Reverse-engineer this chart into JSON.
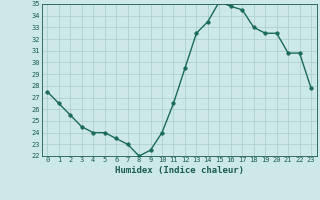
{
  "x": [
    0,
    1,
    2,
    3,
    4,
    5,
    6,
    7,
    8,
    9,
    10,
    11,
    12,
    13,
    14,
    15,
    16,
    17,
    18,
    19,
    20,
    21,
    22,
    23
  ],
  "y": [
    27.5,
    26.5,
    25.5,
    24.5,
    24.0,
    24.0,
    23.5,
    23.0,
    22.0,
    22.5,
    24.0,
    26.5,
    29.5,
    32.5,
    33.5,
    35.2,
    34.8,
    34.5,
    33.0,
    32.5,
    32.5,
    30.8,
    30.8,
    27.8
  ],
  "xlabel": "Humidex (Indice chaleur)",
  "ylim": [
    22,
    35
  ],
  "xlim": [
    -0.5,
    23.5
  ],
  "yticks": [
    22,
    23,
    24,
    25,
    26,
    27,
    28,
    29,
    30,
    31,
    32,
    33,
    34,
    35
  ],
  "xticks": [
    0,
    1,
    2,
    3,
    4,
    5,
    6,
    7,
    8,
    9,
    10,
    11,
    12,
    13,
    14,
    15,
    16,
    17,
    18,
    19,
    20,
    21,
    22,
    23
  ],
  "line_color": "#1a6b5a",
  "marker_color": "#1a6b5a",
  "bg_color": "#cce8e8",
  "grid_color": "#aacccc",
  "font_color": "#1a5c50",
  "tick_fontsize": 5,
  "xlabel_fontsize": 6.5
}
